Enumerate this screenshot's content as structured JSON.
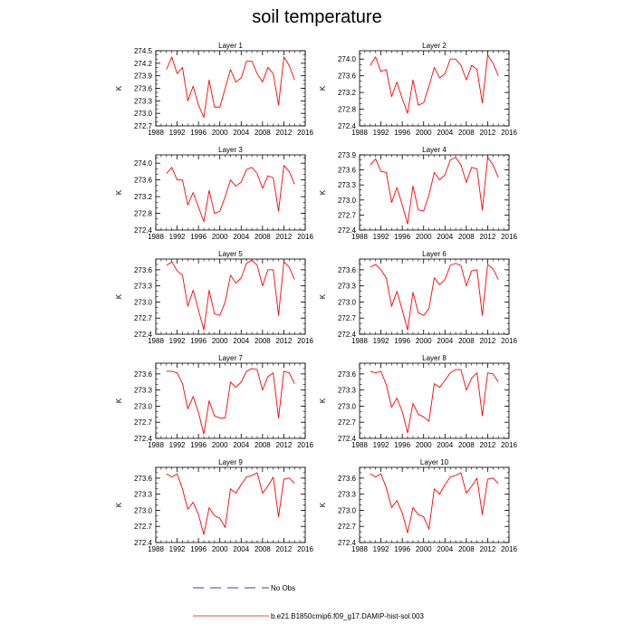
{
  "title": "soil temperature",
  "legend": [
    {
      "label": "No Obs",
      "color": "#000080",
      "style": "dashed"
    },
    {
      "label": "b.e21.B1850cmip6.f09_g17.DAMIP-hist-sol.003",
      "color": "#ff0000",
      "style": "solid"
    }
  ],
  "chart_data": [
    {
      "type": "line",
      "title": "Layer 1",
      "ylabel": "K",
      "xlim": [
        1988,
        2016
      ],
      "xticks": [
        1988,
        1992,
        1996,
        2000,
        2004,
        2008,
        2012,
        2016
      ],
      "ylim": [
        272.7,
        274.5
      ],
      "yticks": [
        "272.7",
        "273.0",
        "273.3",
        "273.6",
        "273.9",
        "274.2",
        "274.5"
      ],
      "x": [
        1990,
        1991,
        1992,
        1993,
        1994,
        1995,
        1996,
        1997,
        1998,
        1999,
        2000,
        2001,
        2002,
        2003,
        2004,
        2005,
        2006,
        2007,
        2008,
        2009,
        2010,
        2011,
        2012,
        2013,
        2014
      ],
      "series": [
        {
          "name": "b.e21.B1850cmip6.f09_g17.DAMIP-hist-sol.003",
          "color": "#ff0000",
          "values": [
            274.05,
            274.35,
            273.95,
            274.1,
            273.3,
            273.65,
            273.2,
            272.9,
            273.8,
            273.15,
            273.15,
            273.6,
            274.05,
            273.75,
            273.85,
            274.25,
            274.25,
            273.95,
            273.75,
            274.1,
            273.95,
            273.2,
            274.35,
            274.15,
            273.8
          ]
        }
      ]
    },
    {
      "type": "line",
      "title": "Layer 2",
      "ylabel": "K",
      "xlim": [
        1988,
        2016
      ],
      "xticks": [
        1988,
        1992,
        1996,
        2000,
        2004,
        2008,
        2012,
        2016
      ],
      "ylim": [
        272.4,
        274.2
      ],
      "yticks": [
        "272.4",
        "272.8",
        "273.2",
        "273.6",
        "274.0"
      ],
      "x": [
        1990,
        1991,
        1992,
        1993,
        1994,
        1995,
        1996,
        1997,
        1998,
        1999,
        2000,
        2001,
        2002,
        2003,
        2004,
        2005,
        2006,
        2007,
        2008,
        2009,
        2010,
        2011,
        2012,
        2013,
        2014
      ],
      "series": [
        {
          "name": "b.e21.B1850cmip6.f09_g17.DAMIP-hist-sol.003",
          "color": "#ff0000",
          "values": [
            273.85,
            274.05,
            273.7,
            273.75,
            273.1,
            273.45,
            273.05,
            272.7,
            273.5,
            272.9,
            272.95,
            273.35,
            273.8,
            273.55,
            273.65,
            274.0,
            274.0,
            273.85,
            273.5,
            273.85,
            273.75,
            272.95,
            274.1,
            273.9,
            273.6
          ]
        }
      ]
    },
    {
      "type": "line",
      "title": "Layer 3",
      "ylabel": "K",
      "xlim": [
        1988,
        2016
      ],
      "xticks": [
        1988,
        1992,
        1996,
        2000,
        2004,
        2008,
        2012,
        2016
      ],
      "ylim": [
        272.4,
        274.2
      ],
      "yticks": [
        "272.4",
        "272.8",
        "273.2",
        "273.6",
        "274.0"
      ],
      "x": [
        1990,
        1991,
        1992,
        1993,
        1994,
        1995,
        1996,
        1997,
        1998,
        1999,
        2000,
        2001,
        2002,
        2003,
        2004,
        2005,
        2006,
        2007,
        2008,
        2009,
        2010,
        2011,
        2012,
        2013,
        2014
      ],
      "series": [
        {
          "name": "b.e21.B1850cmip6.f09_g17.DAMIP-hist-sol.003",
          "color": "#ff0000",
          "values": [
            273.75,
            273.9,
            273.6,
            273.6,
            273.0,
            273.3,
            272.95,
            272.6,
            273.35,
            272.8,
            272.85,
            273.2,
            273.6,
            273.45,
            273.55,
            273.85,
            273.9,
            273.75,
            273.4,
            273.7,
            273.65,
            272.85,
            273.95,
            273.8,
            273.5
          ]
        }
      ]
    },
    {
      "type": "line",
      "title": "Layer 4",
      "ylabel": "K",
      "xlim": [
        1988,
        2016
      ],
      "xticks": [
        1988,
        1992,
        1996,
        2000,
        2004,
        2008,
        2012,
        2016
      ],
      "ylim": [
        272.4,
        273.9
      ],
      "yticks": [
        "272.4",
        "272.7",
        "273.0",
        "273.3",
        "273.6",
        "273.9"
      ],
      "x": [
        1990,
        1991,
        1992,
        1993,
        1994,
        1995,
        1996,
        1997,
        1998,
        1999,
        2000,
        2001,
        2002,
        2003,
        2004,
        2005,
        2006,
        2007,
        2008,
        2009,
        2010,
        2011,
        2012,
        2013,
        2014
      ],
      "series": [
        {
          "name": "b.e21.B1850cmip6.f09_g17.DAMIP-hist-sol.003",
          "color": "#ff0000",
          "values": [
            273.7,
            273.82,
            273.57,
            273.55,
            272.95,
            273.25,
            272.9,
            272.52,
            273.28,
            272.8,
            272.78,
            273.1,
            273.55,
            273.4,
            273.5,
            273.8,
            273.85,
            273.7,
            273.35,
            273.65,
            273.62,
            272.8,
            273.85,
            273.7,
            273.45
          ]
        }
      ]
    },
    {
      "type": "line",
      "title": "Layer 5",
      "ylabel": "K",
      "xlim": [
        1988,
        2016
      ],
      "xticks": [
        1988,
        1992,
        1996,
        2000,
        2004,
        2008,
        2012,
        2016
      ],
      "ylim": [
        272.4,
        273.8
      ],
      "yticks": [
        "272.4",
        "272.7",
        "273.0",
        "273.3",
        "273.6"
      ],
      "x": [
        1990,
        1991,
        1992,
        1993,
        1994,
        1995,
        1996,
        1997,
        1998,
        1999,
        2000,
        2001,
        2002,
        2003,
        2004,
        2005,
        2006,
        2007,
        2008,
        2009,
        2010,
        2011,
        2012,
        2013,
        2014
      ],
      "series": [
        {
          "name": "b.e21.B1850cmip6.f09_g17.DAMIP-hist-sol.003",
          "color": "#ff0000",
          "values": [
            273.68,
            273.75,
            273.58,
            273.5,
            272.92,
            273.22,
            272.85,
            272.48,
            273.22,
            272.78,
            272.75,
            273.0,
            273.5,
            273.35,
            273.45,
            273.72,
            273.78,
            273.68,
            273.3,
            273.6,
            273.6,
            272.75,
            273.75,
            273.65,
            273.42
          ]
        }
      ]
    },
    {
      "type": "line",
      "title": "Layer 6",
      "ylabel": "K",
      "xlim": [
        1988,
        2016
      ],
      "xticks": [
        1988,
        1992,
        1996,
        2000,
        2004,
        2008,
        2012,
        2016
      ],
      "ylim": [
        272.4,
        273.8
      ],
      "yticks": [
        "272.4",
        "272.7",
        "273.0",
        "273.3",
        "273.6"
      ],
      "x": [
        1990,
        1991,
        1992,
        1993,
        1994,
        1995,
        1996,
        1997,
        1998,
        1999,
        2000,
        2001,
        2002,
        2003,
        2004,
        2005,
        2006,
        2007,
        2008,
        2009,
        2010,
        2011,
        2012,
        2013,
        2014
      ],
      "series": [
        {
          "name": "b.e21.B1850cmip6.f09_g17.DAMIP-hist-sol.003",
          "color": "#ff0000",
          "values": [
            273.65,
            273.7,
            273.6,
            273.45,
            272.92,
            273.2,
            272.85,
            272.48,
            273.18,
            272.8,
            272.75,
            272.88,
            273.45,
            273.32,
            273.42,
            273.68,
            273.72,
            273.68,
            273.3,
            273.58,
            273.6,
            272.75,
            273.7,
            273.62,
            273.42
          ]
        }
      ]
    },
    {
      "type": "line",
      "title": "Layer 7",
      "ylabel": "K",
      "xlim": [
        1988,
        2016
      ],
      "xticks": [
        1988,
        1992,
        1996,
        2000,
        2004,
        2008,
        2012,
        2016
      ],
      "ylim": [
        272.4,
        273.8
      ],
      "yticks": [
        "272.4",
        "272.7",
        "273.0",
        "273.3",
        "273.6"
      ],
      "x": [
        1990,
        1991,
        1992,
        1993,
        1994,
        1995,
        1996,
        1997,
        1998,
        1999,
        2000,
        2001,
        2002,
        2003,
        2004,
        2005,
        2006,
        2007,
        2008,
        2009,
        2010,
        2011,
        2012,
        2013,
        2014
      ],
      "series": [
        {
          "name": "b.e21.B1850cmip6.f09_g17.DAMIP-hist-sol.003",
          "color": "#ff0000",
          "values": [
            273.65,
            273.65,
            273.62,
            273.42,
            272.95,
            273.18,
            272.88,
            272.48,
            273.1,
            272.82,
            272.78,
            272.78,
            273.45,
            273.35,
            273.45,
            273.65,
            273.7,
            273.68,
            273.3,
            273.55,
            273.62,
            272.78,
            273.65,
            273.62,
            273.42
          ]
        }
      ]
    },
    {
      "type": "line",
      "title": "Layer 8",
      "ylabel": "K",
      "xlim": [
        1988,
        2016
      ],
      "xticks": [
        1988,
        1992,
        1996,
        2000,
        2004,
        2008,
        2012,
        2016
      ],
      "ylim": [
        272.4,
        273.8
      ],
      "yticks": [
        "272.4",
        "272.7",
        "273.0",
        "273.3",
        "273.6"
      ],
      "x": [
        1990,
        1991,
        1992,
        1993,
        1994,
        1995,
        1996,
        1997,
        1998,
        1999,
        2000,
        2001,
        2002,
        2003,
        2004,
        2005,
        2006,
        2007,
        2008,
        2009,
        2010,
        2011,
        2012,
        2013,
        2014
      ],
      "series": [
        {
          "name": "b.e21.B1850cmip6.f09_g17.DAMIP-hist-sol.003",
          "color": "#ff0000",
          "values": [
            273.65,
            273.62,
            273.65,
            273.4,
            272.98,
            273.15,
            272.9,
            272.5,
            273.05,
            272.85,
            272.8,
            272.72,
            273.42,
            273.35,
            273.48,
            273.62,
            273.68,
            273.68,
            273.3,
            273.52,
            273.62,
            272.82,
            273.62,
            273.6,
            273.45
          ]
        }
      ]
    },
    {
      "type": "line",
      "title": "Layer 9",
      "ylabel": "K",
      "xlim": [
        1988,
        2016
      ],
      "xticks": [
        1988,
        1992,
        1996,
        2000,
        2004,
        2008,
        2012,
        2016
      ],
      "ylim": [
        272.4,
        273.8
      ],
      "yticks": [
        "272.4",
        "272.7",
        "273.0",
        "273.3",
        "273.6"
      ],
      "x": [
        1990,
        1991,
        1992,
        1993,
        1994,
        1995,
        1996,
        1997,
        1998,
        1999,
        2000,
        2001,
        2002,
        2003,
        2004,
        2005,
        2006,
        2007,
        2008,
        2009,
        2010,
        2011,
        2012,
        2013,
        2014
      ],
      "series": [
        {
          "name": "b.e21.B1850cmip6.f09_g17.DAMIP-hist-sol.003",
          "color": "#ff0000",
          "values": [
            273.68,
            273.62,
            273.68,
            273.4,
            273.02,
            273.15,
            272.92,
            272.55,
            273.05,
            272.9,
            272.85,
            272.68,
            273.4,
            273.32,
            273.48,
            273.62,
            273.65,
            273.7,
            273.32,
            273.45,
            273.62,
            272.88,
            273.58,
            273.6,
            273.5
          ]
        }
      ]
    },
    {
      "type": "line",
      "title": "Layer 10",
      "ylabel": "K",
      "xlim": [
        1988,
        2016
      ],
      "xticks": [
        1988,
        1992,
        1996,
        2000,
        2004,
        2008,
        2012,
        2016
      ],
      "ylim": [
        272.4,
        273.8
      ],
      "yticks": [
        "272.4",
        "272.7",
        "273.0",
        "273.3",
        "273.6"
      ],
      "x": [
        1990,
        1991,
        1992,
        1993,
        1994,
        1995,
        1996,
        1997,
        1998,
        1999,
        2000,
        2001,
        2002,
        2003,
        2004,
        2005,
        2006,
        2007,
        2008,
        2009,
        2010,
        2011,
        2012,
        2013,
        2014
      ],
      "series": [
        {
          "name": "b.e21.B1850cmip6.f09_g17.DAMIP-hist-sol.003",
          "color": "#ff0000",
          "values": [
            273.68,
            273.62,
            273.68,
            273.42,
            273.05,
            273.18,
            272.95,
            272.58,
            273.05,
            272.92,
            272.88,
            272.65,
            273.4,
            273.3,
            273.48,
            273.62,
            273.65,
            273.7,
            273.32,
            273.45,
            273.6,
            272.92,
            273.58,
            273.6,
            273.5
          ]
        }
      ]
    }
  ]
}
